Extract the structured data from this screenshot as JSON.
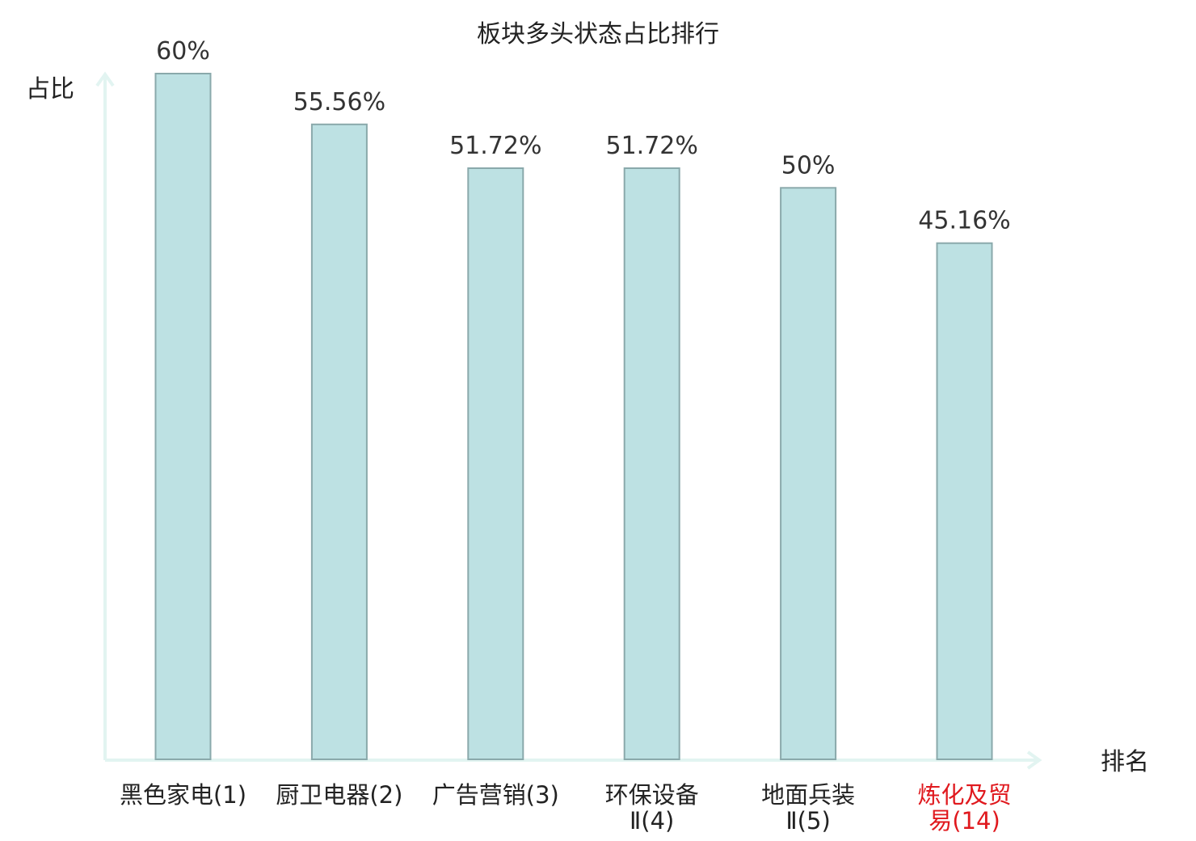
{
  "colors": {
    "bar_fill": "#bde1e3",
    "bar_stroke": "#8aa9ab",
    "axis": "#e2f4f1",
    "text": "#222222",
    "value_label": "#333333",
    "highlight": "#e0191e"
  },
  "chart_data": {
    "type": "bar",
    "title": "板块多头状态占比排行",
    "xlabel": "排名",
    "ylabel": "占比",
    "categories": [
      {
        "line1": "黑色家电(1)",
        "line2": "",
        "highlight": false
      },
      {
        "line1": "厨卫电器(2)",
        "line2": "",
        "highlight": false
      },
      {
        "line1": "广告营销(3)",
        "line2": "",
        "highlight": false
      },
      {
        "line1": "环保设备",
        "line2": "Ⅱ(4)",
        "highlight": false
      },
      {
        "line1": "地面兵装",
        "line2": "Ⅱ(5)",
        "highlight": false
      },
      {
        "line1": "炼化及贸",
        "line2": "易(14)",
        "highlight": true
      }
    ],
    "values": [
      60,
      55.56,
      51.72,
      51.72,
      50,
      45.16
    ],
    "value_labels": [
      "60%",
      "55.56%",
      "51.72%",
      "51.72%",
      "50%",
      "45.16%"
    ],
    "ylim": [
      0,
      60
    ],
    "grid": false,
    "legend": "none"
  }
}
